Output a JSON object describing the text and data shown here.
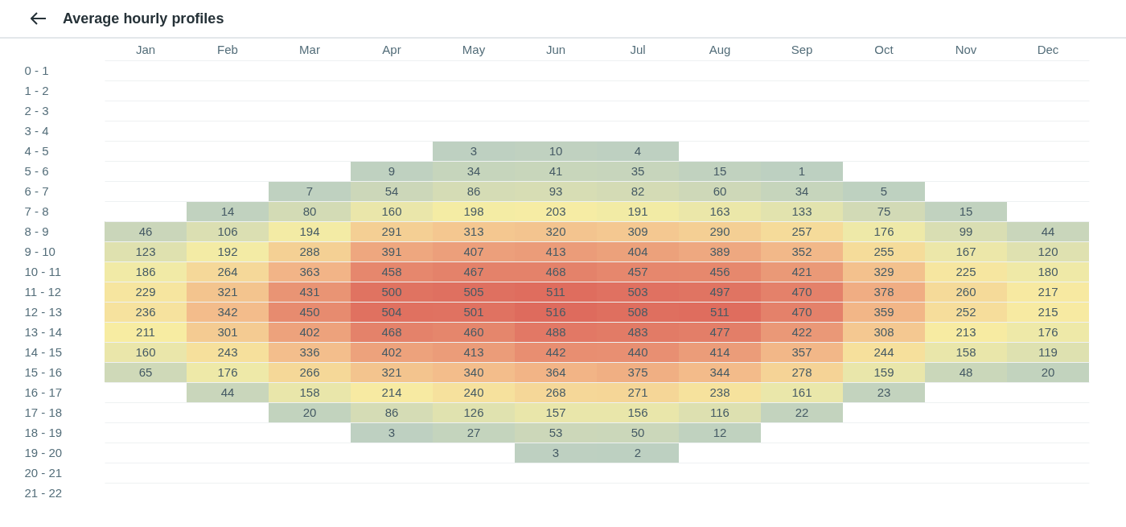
{
  "chart_data": {
    "type": "heatmap",
    "title": "Average hourly profiles",
    "categories": [
      "Jan",
      "Feb",
      "Mar",
      "Apr",
      "May",
      "Jun",
      "Jul",
      "Aug",
      "Sep",
      "Oct",
      "Nov",
      "Dec"
    ],
    "y_categories": [
      "0 - 1",
      "1 - 2",
      "2 - 3",
      "3 - 4",
      "4 - 5",
      "5 - 6",
      "6 - 7",
      "7 - 8",
      "8 - 9",
      "9 - 10",
      "10 - 11",
      "11 - 12",
      "12 - 13",
      "13 - 14",
      "14 - 15",
      "15 - 16",
      "16 - 17",
      "17 - 18",
      "18 - 19",
      "19 - 20",
      "20 - 21",
      "21 - 22"
    ],
    "cells": [
      [
        null,
        null,
        null,
        null,
        null,
        null,
        null,
        null,
        null,
        null,
        null,
        null
      ],
      [
        null,
        null,
        null,
        null,
        null,
        null,
        null,
        null,
        null,
        null,
        null,
        null
      ],
      [
        null,
        null,
        null,
        null,
        null,
        null,
        null,
        null,
        null,
        null,
        null,
        null
      ],
      [
        null,
        null,
        null,
        null,
        null,
        null,
        null,
        null,
        null,
        null,
        null,
        null
      ],
      [
        null,
        null,
        null,
        null,
        3,
        10,
        4,
        null,
        null,
        null,
        null,
        null
      ],
      [
        null,
        null,
        null,
        9,
        34,
        41,
        35,
        15,
        1,
        null,
        null,
        null
      ],
      [
        null,
        null,
        7,
        54,
        86,
        93,
        82,
        60,
        34,
        5,
        null,
        null
      ],
      [
        null,
        14,
        80,
        160,
        198,
        203,
        191,
        163,
        133,
        75,
        15,
        null
      ],
      [
        46,
        106,
        194,
        291,
        313,
        320,
        309,
        290,
        257,
        176,
        99,
        44
      ],
      [
        123,
        192,
        288,
        391,
        407,
        413,
        404,
        389,
        352,
        255,
        167,
        120
      ],
      [
        186,
        264,
        363,
        458,
        467,
        468,
        457,
        456,
        421,
        329,
        225,
        180
      ],
      [
        229,
        321,
        431,
        500,
        505,
        511,
        503,
        497,
        470,
        378,
        260,
        217
      ],
      [
        236,
        342,
        450,
        504,
        501,
        516,
        508,
        511,
        470,
        359,
        252,
        215
      ],
      [
        211,
        301,
        402,
        468,
        460,
        488,
        483,
        477,
        422,
        308,
        213,
        176
      ],
      [
        160,
        243,
        336,
        402,
        413,
        442,
        440,
        414,
        357,
        244,
        158,
        119
      ],
      [
        65,
        176,
        266,
        321,
        340,
        364,
        375,
        344,
        278,
        159,
        48,
        20
      ],
      [
        null,
        44,
        158,
        214,
        240,
        268,
        271,
        238,
        161,
        23,
        null,
        null
      ],
      [
        null,
        null,
        20,
        86,
        126,
        157,
        156,
        116,
        22,
        null,
        null,
        null
      ],
      [
        null,
        null,
        null,
        3,
        27,
        53,
        50,
        12,
        null,
        null,
        null,
        null
      ],
      [
        null,
        null,
        null,
        null,
        null,
        3,
        2,
        null,
        null,
        null,
        null,
        null
      ],
      [
        null,
        null,
        null,
        null,
        null,
        null,
        null,
        null,
        null,
        null,
        null,
        null
      ],
      [
        null,
        null,
        null,
        null,
        null,
        null,
        null,
        null,
        null,
        null,
        null,
        null
      ]
    ],
    "data_labels": true,
    "grid": "y"
  }
}
